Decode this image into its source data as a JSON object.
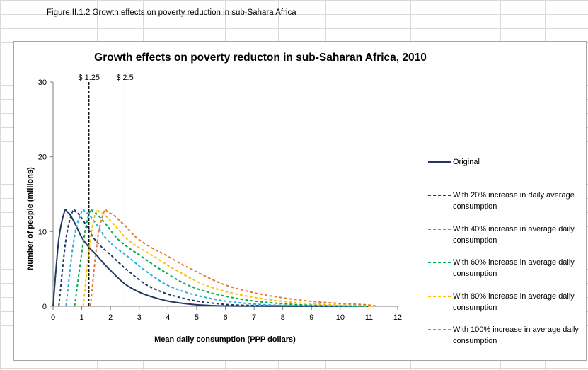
{
  "caption": "Figure II.1.2 Growth effects on poverty reduction in sub-Sahara Africa",
  "chart_data": {
    "type": "line",
    "title": "Growth effects on poverty reducton in sub-Saharan Africa, 2010",
    "xlabel": "Mean daily consumption (PPP dollars)",
    "ylabel": "Number of people (millions)",
    "xlim": [
      0,
      12
    ],
    "ylim": [
      0,
      30
    ],
    "xticks": [
      "0",
      "1",
      "2",
      "3",
      "4",
      "5",
      "6",
      "7",
      "8",
      "9",
      "10",
      "11",
      "12"
    ],
    "yticks": [
      "0",
      "10",
      "20",
      "30"
    ],
    "grid": false,
    "legend_position": "right",
    "reference_lines": [
      {
        "x": 1.25,
        "label": "$ 1.25",
        "color": "#000000"
      },
      {
        "x": 2.5,
        "label": "$ 2.5",
        "color": "#595959"
      }
    ],
    "series": [
      {
        "name": "Original",
        "color": "#1f3864",
        "dash": "solid",
        "x": [
          0,
          0.2,
          0.4,
          0.5,
          0.6,
          0.8,
          1.0,
          1.25,
          1.5,
          1.75,
          2.0,
          2.5,
          3.0,
          3.5,
          4.0,
          4.5,
          5.0,
          5.5,
          6.0,
          7.0,
          8.0,
          9.0,
          10.0,
          11.0
        ],
        "y": [
          0,
          9.0,
          12.7,
          12.6,
          12.2,
          10.8,
          9.2,
          7.9,
          6.9,
          5.8,
          4.8,
          3.0,
          1.9,
          1.2,
          0.7,
          0.4,
          0.2,
          0.1,
          0.05,
          0.02,
          0.01,
          0.0,
          0.0,
          0.0
        ]
      },
      {
        "name": "With 20% increase in daily average consumption",
        "color": "#1f3864",
        "dash": "dashed",
        "x": [
          0.2,
          0.45,
          0.68,
          0.8,
          0.92,
          1.16,
          1.4,
          1.7,
          2.0,
          2.3,
          2.6,
          3.2,
          3.8,
          4.4,
          5.0,
          5.6,
          6.2,
          7.0,
          8.0,
          9.0,
          10.0,
          10.6
        ],
        "y": [
          0,
          9.0,
          12.7,
          12.6,
          12.2,
          10.8,
          9.2,
          7.9,
          6.9,
          5.8,
          4.8,
          3.0,
          1.9,
          1.2,
          0.7,
          0.4,
          0.2,
          0.1,
          0.05,
          0.02,
          0.01,
          0.0
        ]
      },
      {
        "name": "With 40% increase in average daily consumption",
        "color": "#29abe2",
        "dash": "dashed",
        "x": [
          0.45,
          0.73,
          1.0,
          1.12,
          1.26,
          1.54,
          1.82,
          2.17,
          2.52,
          2.87,
          3.2,
          3.9,
          4.6,
          5.3,
          6.0,
          6.7,
          7.4,
          8.2,
          9.0,
          10.0,
          10.8
        ],
        "y": [
          0,
          9.0,
          12.7,
          12.6,
          12.2,
          10.8,
          9.2,
          7.9,
          6.9,
          5.8,
          4.8,
          3.0,
          1.9,
          1.2,
          0.7,
          0.4,
          0.2,
          0.1,
          0.05,
          0.02,
          0.0
        ]
      },
      {
        "name": "With 60% increase in average daily consumption",
        "color": "#00b050",
        "dash": "dashed",
        "x": [
          0.75,
          1.07,
          1.28,
          1.4,
          1.56,
          1.88,
          2.2,
          2.6,
          3.0,
          3.4,
          3.8,
          4.6,
          5.4,
          6.2,
          7.0,
          7.8,
          8.6,
          9.4,
          10.2,
          11.0
        ],
        "y": [
          0,
          9.0,
          12.7,
          12.6,
          12.2,
          10.8,
          9.2,
          7.9,
          6.9,
          5.8,
          4.8,
          3.0,
          1.9,
          1.2,
          0.7,
          0.4,
          0.2,
          0.1,
          0.05,
          0.0
        ]
      },
      {
        "name": "With 80% increase in average daily consumption",
        "color": "#ffc000",
        "dash": "dashed",
        "x": [
          1.05,
          1.3,
          1.5,
          1.62,
          1.8,
          2.16,
          2.52,
          2.97,
          3.42,
          3.87,
          4.3,
          5.2,
          6.1,
          7.0,
          7.9,
          8.8,
          9.7,
          10.5,
          11.1
        ],
        "y": [
          0,
          9.0,
          12.7,
          12.6,
          12.2,
          10.8,
          9.2,
          7.9,
          6.9,
          5.8,
          4.8,
          3.0,
          1.9,
          1.2,
          0.7,
          0.4,
          0.2,
          0.1,
          0.0
        ]
      },
      {
        "name": "With 100% increase in average daily consumption",
        "color": "#e07b39",
        "dash": "dashed",
        "x": [
          1.3,
          1.55,
          1.78,
          1.9,
          2.1,
          2.5,
          2.9,
          3.4,
          3.9,
          4.4,
          4.9,
          5.9,
          6.9,
          7.9,
          8.9,
          9.9,
          10.9,
          11.3
        ],
        "y": [
          0,
          9.0,
          12.7,
          12.6,
          12.2,
          10.8,
          9.2,
          7.9,
          6.9,
          5.8,
          4.8,
          3.0,
          1.9,
          1.2,
          0.7,
          0.4,
          0.2,
          0.0
        ]
      }
    ]
  }
}
